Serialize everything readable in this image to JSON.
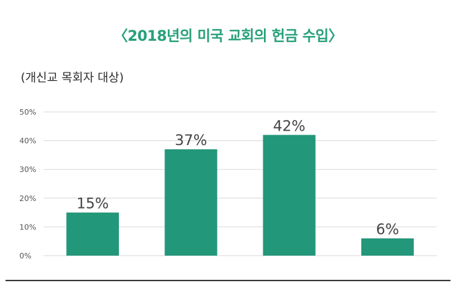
{
  "chart_data": {
    "type": "bar",
    "title": "〈2018년의 미국 교회의 헌금 수입〉",
    "subtitle": "(개신교 목회자 대상)",
    "categories": [
      "",
      "",
      "",
      ""
    ],
    "values": [
      15,
      37,
      42,
      6
    ],
    "value_labels": [
      "15%",
      "37%",
      "42%",
      "6%"
    ],
    "yticks": [
      "0%",
      "10%",
      "20%",
      "30%",
      "40%",
      "50%"
    ],
    "ylim": [
      0,
      50
    ],
    "grid": true,
    "colors": {
      "bar": "#23977a",
      "title": "#27a07a",
      "grid": "#d9d9d9"
    }
  }
}
